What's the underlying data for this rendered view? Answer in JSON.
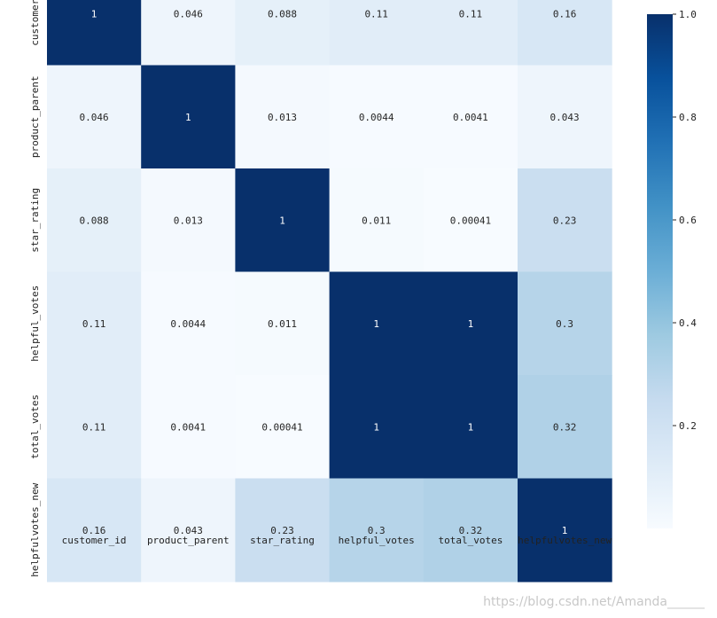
{
  "chart_data": {
    "type": "heatmap",
    "x_labels": [
      "customer_id",
      "product_parent",
      "star_rating",
      "helpful_votes",
      "total_votes",
      "helpfulvotes_new"
    ],
    "y_labels": [
      "customer_id",
      "product_parent",
      "star_rating",
      "helpful_votes",
      "total_votes",
      "helpfulvotes_new"
    ],
    "values": [
      [
        1,
        0.046,
        0.088,
        0.11,
        0.11,
        0.16
      ],
      [
        0.046,
        1,
        0.013,
        0.0044,
        0.0041,
        0.043
      ],
      [
        0.088,
        0.013,
        1,
        0.011,
        0.00041,
        0.23
      ],
      [
        0.11,
        0.0044,
        0.011,
        1,
        1,
        0.3
      ],
      [
        0.11,
        0.0041,
        0.00041,
        1,
        1,
        0.32
      ],
      [
        0.16,
        0.043,
        0.23,
        0.3,
        0.32,
        1
      ]
    ],
    "annotations": [
      [
        "1",
        "0.046",
        "0.088",
        "0.11",
        "0.11",
        "0.16"
      ],
      [
        "0.046",
        "1",
        "0.013",
        "0.0044",
        "0.0041",
        "0.043"
      ],
      [
        "0.088",
        "0.013",
        "1",
        "0.011",
        "0.00041",
        "0.23"
      ],
      [
        "0.11",
        "0.0044",
        "0.011",
        "1",
        "1",
        "0.3"
      ],
      [
        "0.11",
        "0.0041",
        "0.00041",
        "1",
        "1",
        "0.32"
      ],
      [
        "0.16",
        "0.043",
        "0.23",
        "0.3",
        "0.32",
        "1"
      ]
    ],
    "colormap": "Blues",
    "vmin": 0,
    "vmax": 1,
    "colorbar_ticks": [
      0.2,
      0.4,
      0.6,
      0.8,
      1.0
    ],
    "colorbar_tick_labels": [
      "0.2",
      "0.4",
      "0.6",
      "0.8",
      "1.0"
    ],
    "colors": {
      "low": "#f7fbff",
      "high": "#08306b"
    }
  },
  "watermark": "https://blog.csdn.net/Amanda______"
}
